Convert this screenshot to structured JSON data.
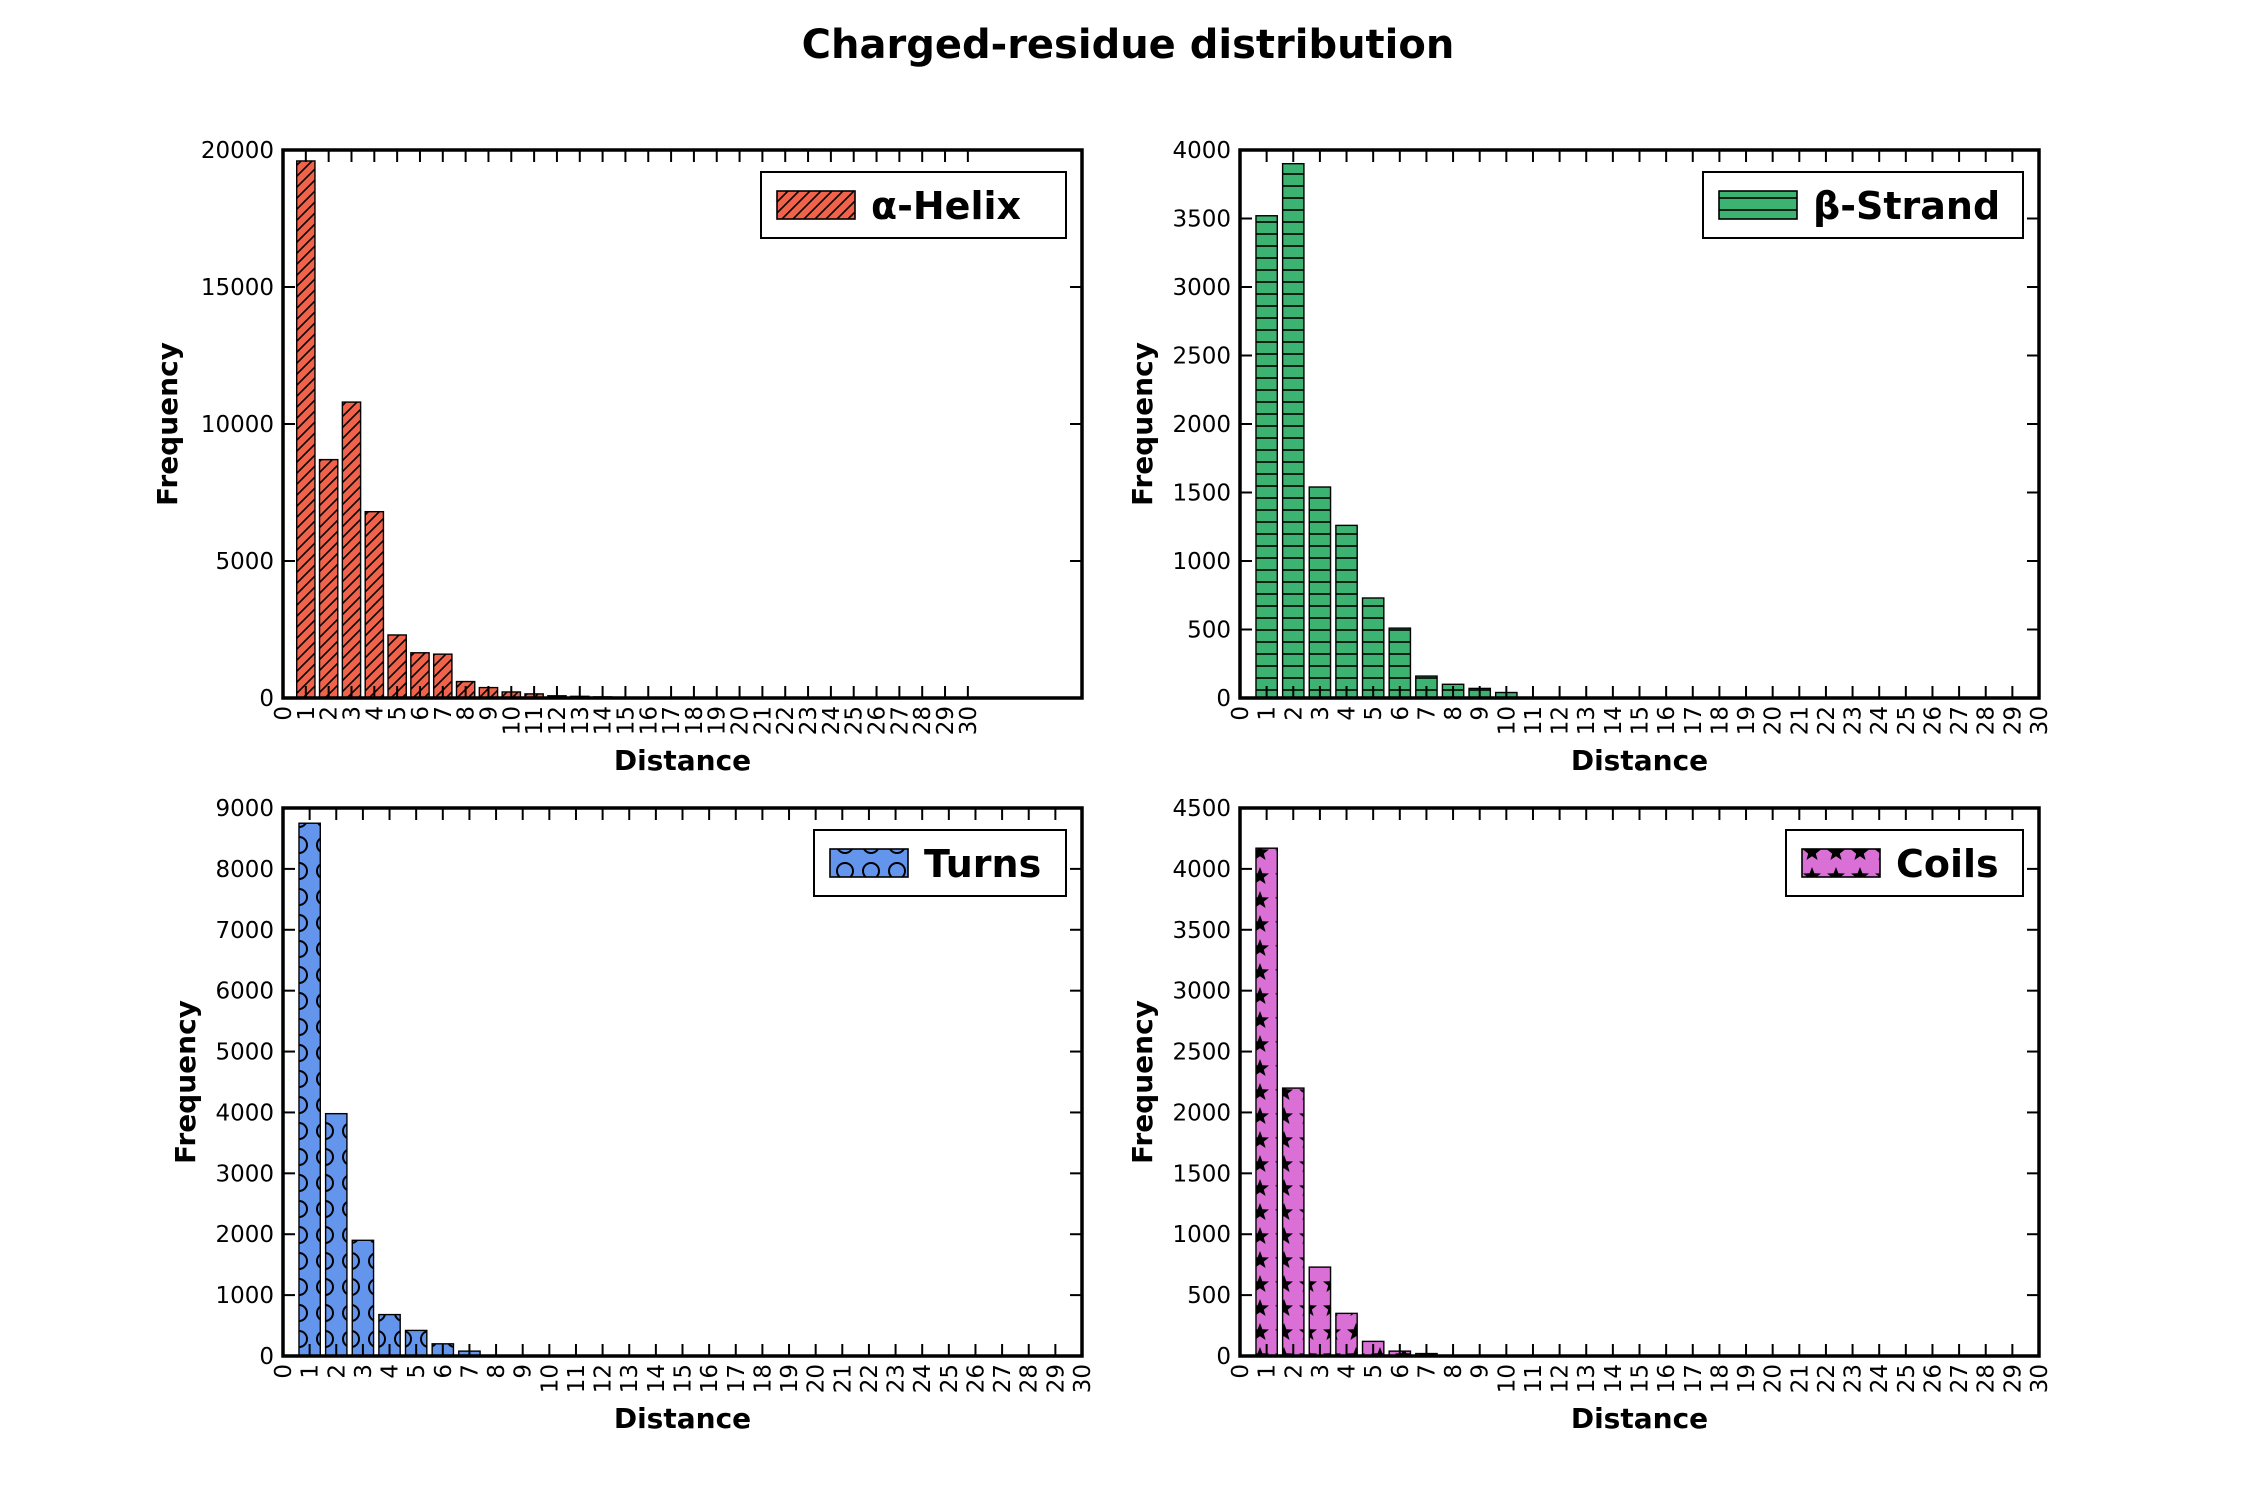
{
  "figure": {
    "title": "Charged-residue distribution"
  },
  "chart_data": [
    {
      "type": "bar",
      "legend": "α-Helix",
      "legend_position": "top-right",
      "color": "#f0624a",
      "hatch": "diagonal",
      "xlabel": "Distance",
      "ylabel": "Frequency",
      "xlim": [
        0,
        35
      ],
      "ylim": [
        0,
        20000
      ],
      "yticks": [
        0,
        5000,
        10000,
        15000,
        20000
      ],
      "xticks": [
        0,
        1,
        2,
        3,
        4,
        5,
        6,
        7,
        8,
        9,
        10,
        11,
        12,
        13,
        14,
        15,
        16,
        17,
        18,
        19,
        20,
        21,
        22,
        23,
        24,
        25,
        26,
        27,
        28,
        29,
        30
      ],
      "x": [
        1,
        2,
        3,
        4,
        5,
        6,
        7,
        8,
        9,
        10,
        11,
        12,
        13,
        14,
        15
      ],
      "values": [
        19600,
        8700,
        10800,
        6800,
        2300,
        1650,
        1600,
        600,
        380,
        220,
        150,
        80,
        60,
        40,
        15
      ]
    },
    {
      "type": "bar",
      "legend": "β-Strand",
      "legend_position": "top-right",
      "color": "#3cb371",
      "hatch": "horizontal",
      "xlabel": "Distance",
      "ylabel": "Frequency",
      "xlim": [
        0,
        30
      ],
      "ylim": [
        0,
        4000
      ],
      "yticks": [
        0,
        500,
        1000,
        1500,
        2000,
        2500,
        3000,
        3500,
        4000
      ],
      "xticks": [
        0,
        1,
        2,
        3,
        4,
        5,
        6,
        7,
        8,
        9,
        10,
        11,
        12,
        13,
        14,
        15,
        16,
        17,
        18,
        19,
        20,
        21,
        22,
        23,
        24,
        25,
        26,
        27,
        28,
        29,
        30
      ],
      "x": [
        1,
        2,
        3,
        4,
        5,
        6,
        7,
        8,
        9,
        10
      ],
      "values": [
        3520,
        3900,
        1540,
        1260,
        730,
        510,
        160,
        100,
        70,
        40
      ]
    },
    {
      "type": "bar",
      "legend": "Turns",
      "legend_position": "top-right",
      "color": "#6495ed",
      "hatch": "circles",
      "xlabel": "Distance",
      "ylabel": "Frequency",
      "xlim": [
        0,
        30
      ],
      "ylim": [
        0,
        9000
      ],
      "yticks": [
        0,
        1000,
        2000,
        3000,
        4000,
        5000,
        6000,
        7000,
        8000,
        9000
      ],
      "xticks": [
        0,
        1,
        2,
        3,
        4,
        5,
        6,
        7,
        8,
        9,
        10,
        11,
        12,
        13,
        14,
        15,
        16,
        17,
        18,
        19,
        20,
        21,
        22,
        23,
        24,
        25,
        26,
        27,
        28,
        29,
        30
      ],
      "x": [
        1,
        2,
        3,
        4,
        5,
        6,
        7
      ],
      "values": [
        8750,
        3980,
        1900,
        680,
        420,
        200,
        80
      ]
    },
    {
      "type": "bar",
      "legend": "Coils",
      "legend_position": "top-right",
      "color": "#da70d6",
      "hatch": "stars",
      "xlabel": "Distance",
      "ylabel": "Frequency",
      "xlim": [
        0,
        30
      ],
      "ylim": [
        0,
        4500
      ],
      "yticks": [
        0,
        500,
        1000,
        1500,
        2000,
        2500,
        3000,
        3500,
        4000,
        4500
      ],
      "xticks": [
        0,
        1,
        2,
        3,
        4,
        5,
        6,
        7,
        8,
        9,
        10,
        11,
        12,
        13,
        14,
        15,
        16,
        17,
        18,
        19,
        20,
        21,
        22,
        23,
        24,
        25,
        26,
        27,
        28,
        29,
        30
      ],
      "x": [
        1,
        2,
        3,
        4,
        5,
        6,
        7
      ],
      "values": [
        4170,
        2200,
        730,
        350,
        120,
        40,
        20
      ]
    }
  ]
}
